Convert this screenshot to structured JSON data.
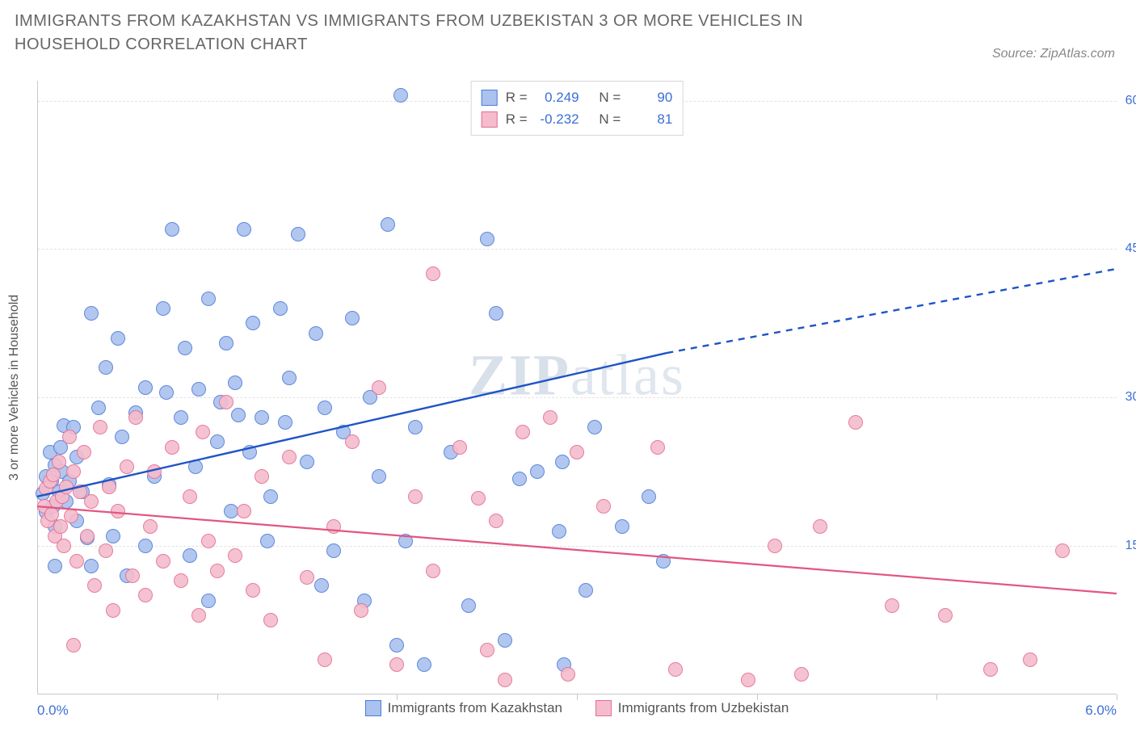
{
  "title": "IMMIGRANTS FROM KAZAKHSTAN VS IMMIGRANTS FROM UZBEKISTAN 3 OR MORE VEHICLES IN HOUSEHOLD CORRELATION CHART",
  "source_label": "Source: ZipAtlas.com",
  "watermark": {
    "bold": "ZIP",
    "rest": "atlas"
  },
  "y_axis_title": "3 or more Vehicles in Household",
  "chart": {
    "type": "scatter",
    "background_color": "#ffffff",
    "grid_color": "#e2e2e2",
    "axis_color": "#c9c9c9",
    "xlim": [
      0.0,
      6.0
    ],
    "ylim": [
      0.0,
      62.0
    ],
    "x_ticks": [
      1.0,
      2.0,
      3.0,
      4.0,
      5.0,
      6.0
    ],
    "x_tick_labels": {
      "min": "0.0%",
      "max": "6.0%"
    },
    "y_gridlines": [
      15.0,
      30.0,
      45.0,
      60.0
    ],
    "y_tick_labels": [
      "15.0%",
      "30.0%",
      "45.0%",
      "60.0%"
    ],
    "marker_radius": 9,
    "marker_border_width": 1.2,
    "marker_fill_opacity": 0.3,
    "series": [
      {
        "name": "Immigrants from Kazakhstan",
        "label": "Immigrants from Kazakhstan",
        "color_border": "#4f7bd9",
        "color_fill": "#a9c2ee",
        "stats": {
          "R": "0.249",
          "N": "90"
        },
        "regression": {
          "solid": {
            "x1": 0.0,
            "y1": 20.0,
            "x2": 3.5,
            "y2": 34.5
          },
          "dashed": {
            "x1": 3.5,
            "y1": 34.5,
            "x2": 6.0,
            "y2": 43.0
          },
          "stroke": "#1f54c7",
          "width": 2.4
        },
        "points": [
          [
            0.03,
            20.3
          ],
          [
            0.05,
            22.0
          ],
          [
            0.05,
            18.4
          ],
          [
            0.07,
            24.5
          ],
          [
            0.08,
            21.5
          ],
          [
            0.09,
            19.0
          ],
          [
            0.1,
            23.2
          ],
          [
            0.1,
            17.0
          ],
          [
            0.1,
            13.0
          ],
          [
            0.12,
            20.5
          ],
          [
            0.13,
            25.0
          ],
          [
            0.14,
            22.5
          ],
          [
            0.15,
            27.2
          ],
          [
            0.16,
            19.5
          ],
          [
            0.18,
            21.5
          ],
          [
            0.2,
            27.0
          ],
          [
            0.22,
            24.0
          ],
          [
            0.22,
            17.5
          ],
          [
            0.25,
            20.5
          ],
          [
            0.28,
            15.8
          ],
          [
            0.3,
            38.5
          ],
          [
            0.3,
            13.0
          ],
          [
            0.34,
            29.0
          ],
          [
            0.38,
            33.0
          ],
          [
            0.4,
            21.2
          ],
          [
            0.42,
            16.0
          ],
          [
            0.45,
            36.0
          ],
          [
            0.47,
            26.0
          ],
          [
            0.5,
            12.0
          ],
          [
            0.55,
            28.5
          ],
          [
            0.6,
            31.0
          ],
          [
            0.6,
            15.0
          ],
          [
            0.65,
            22.0
          ],
          [
            0.7,
            39.0
          ],
          [
            0.72,
            30.5
          ],
          [
            0.75,
            47.0
          ],
          [
            0.8,
            28.0
          ],
          [
            0.82,
            35.0
          ],
          [
            0.85,
            14.0
          ],
          [
            0.88,
            23.0
          ],
          [
            0.9,
            30.8
          ],
          [
            0.95,
            40.0
          ],
          [
            0.95,
            9.5
          ],
          [
            1.0,
            25.5
          ],
          [
            1.02,
            29.5
          ],
          [
            1.05,
            35.5
          ],
          [
            1.08,
            18.5
          ],
          [
            1.1,
            31.5
          ],
          [
            1.12,
            28.2
          ],
          [
            1.15,
            47.0
          ],
          [
            1.18,
            24.5
          ],
          [
            1.2,
            37.5
          ],
          [
            1.25,
            28.0
          ],
          [
            1.28,
            15.5
          ],
          [
            1.3,
            20.0
          ],
          [
            1.35,
            39.0
          ],
          [
            1.38,
            27.5
          ],
          [
            1.4,
            32.0
          ],
          [
            1.45,
            46.5
          ],
          [
            1.5,
            23.5
          ],
          [
            1.55,
            36.5
          ],
          [
            1.58,
            11.0
          ],
          [
            1.6,
            29.0
          ],
          [
            1.65,
            14.5
          ],
          [
            1.7,
            26.5
          ],
          [
            1.75,
            38.0
          ],
          [
            1.82,
            9.5
          ],
          [
            1.85,
            30.0
          ],
          [
            1.9,
            22.0
          ],
          [
            1.95,
            47.5
          ],
          [
            2.0,
            5.0
          ],
          [
            2.02,
            60.5
          ],
          [
            2.05,
            15.5
          ],
          [
            2.1,
            27.0
          ],
          [
            2.15,
            3.0
          ],
          [
            2.3,
            24.5
          ],
          [
            2.4,
            9.0
          ],
          [
            2.5,
            46.0
          ],
          [
            2.55,
            38.5
          ],
          [
            2.6,
            5.5
          ],
          [
            2.68,
            21.8
          ],
          [
            2.78,
            22.5
          ],
          [
            2.9,
            16.5
          ],
          [
            2.92,
            23.5
          ],
          [
            2.93,
            3.0
          ],
          [
            3.05,
            10.5
          ],
          [
            3.1,
            27.0
          ],
          [
            3.25,
            17.0
          ],
          [
            3.4,
            20.0
          ],
          [
            3.48,
            13.5
          ]
        ]
      },
      {
        "name": "Immigrants from Uzbekistan",
        "label": "Immigrants from Uzbekistan",
        "color_border": "#e46f93",
        "color_fill": "#f4bccd",
        "stats": {
          "R": "-0.232",
          "N": "81"
        },
        "regression": {
          "solid": {
            "x1": 0.0,
            "y1": 19.0,
            "x2": 6.0,
            "y2": 10.2
          },
          "dashed": null,
          "stroke": "#e2567f",
          "width": 2.2
        },
        "points": [
          [
            0.04,
            19.0
          ],
          [
            0.05,
            20.8
          ],
          [
            0.06,
            17.5
          ],
          [
            0.07,
            21.5
          ],
          [
            0.08,
            18.2
          ],
          [
            0.09,
            22.2
          ],
          [
            0.1,
            16.0
          ],
          [
            0.11,
            19.5
          ],
          [
            0.12,
            23.5
          ],
          [
            0.13,
            17.0
          ],
          [
            0.14,
            20.0
          ],
          [
            0.15,
            15.0
          ],
          [
            0.16,
            21.0
          ],
          [
            0.18,
            26.0
          ],
          [
            0.19,
            18.0
          ],
          [
            0.2,
            22.5
          ],
          [
            0.2,
            5.0
          ],
          [
            0.22,
            13.5
          ],
          [
            0.24,
            20.5
          ],
          [
            0.26,
            24.5
          ],
          [
            0.28,
            16.0
          ],
          [
            0.3,
            19.5
          ],
          [
            0.32,
            11.0
          ],
          [
            0.35,
            27.0
          ],
          [
            0.38,
            14.5
          ],
          [
            0.4,
            21.0
          ],
          [
            0.42,
            8.5
          ],
          [
            0.45,
            18.5
          ],
          [
            0.5,
            23.0
          ],
          [
            0.53,
            12.0
          ],
          [
            0.55,
            28.0
          ],
          [
            0.6,
            10.0
          ],
          [
            0.63,
            17.0
          ],
          [
            0.65,
            22.5
          ],
          [
            0.7,
            13.5
          ],
          [
            0.75,
            25.0
          ],
          [
            0.8,
            11.5
          ],
          [
            0.85,
            20.0
          ],
          [
            0.9,
            8.0
          ],
          [
            0.92,
            26.5
          ],
          [
            0.95,
            15.5
          ],
          [
            1.0,
            12.5
          ],
          [
            1.05,
            29.5
          ],
          [
            1.1,
            14.0
          ],
          [
            1.15,
            18.5
          ],
          [
            1.2,
            10.5
          ],
          [
            1.25,
            22.0
          ],
          [
            1.3,
            7.5
          ],
          [
            1.4,
            24.0
          ],
          [
            1.5,
            11.8
          ],
          [
            1.6,
            3.5
          ],
          [
            1.65,
            17.0
          ],
          [
            1.75,
            25.5
          ],
          [
            1.8,
            8.5
          ],
          [
            1.9,
            31.0
          ],
          [
            2.0,
            3.0
          ],
          [
            2.1,
            20.0
          ],
          [
            2.2,
            12.5
          ],
          [
            2.2,
            42.5
          ],
          [
            2.35,
            25.0
          ],
          [
            2.45,
            19.8
          ],
          [
            2.5,
            4.5
          ],
          [
            2.55,
            17.5
          ],
          [
            2.6,
            1.5
          ],
          [
            2.7,
            26.5
          ],
          [
            2.85,
            28.0
          ],
          [
            2.95,
            2.0
          ],
          [
            3.0,
            24.5
          ],
          [
            3.15,
            19.0
          ],
          [
            3.45,
            25.0
          ],
          [
            3.55,
            2.5
          ],
          [
            3.95,
            1.5
          ],
          [
            4.1,
            15.0
          ],
          [
            4.25,
            2.0
          ],
          [
            4.35,
            17.0
          ],
          [
            4.55,
            27.5
          ],
          [
            4.75,
            9.0
          ],
          [
            5.05,
            8.0
          ],
          [
            5.3,
            2.5
          ],
          [
            5.52,
            3.5
          ],
          [
            5.7,
            14.5
          ]
        ]
      }
    ]
  },
  "legend_top": {
    "R_label": "R =",
    "N_label": "N ="
  }
}
